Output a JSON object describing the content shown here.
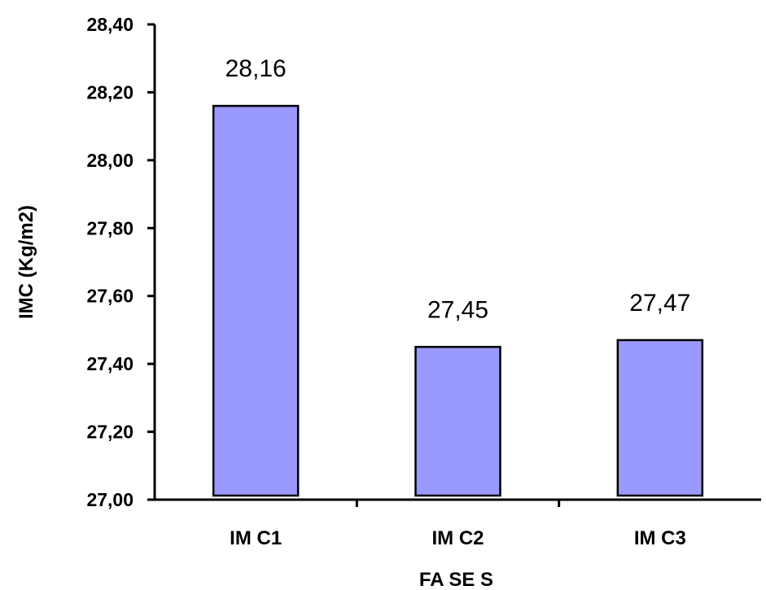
{
  "chart_data": {
    "type": "bar",
    "categories": [
      "IM C1",
      "IM C2",
      "IM C3"
    ],
    "values": [
      28.16,
      27.45,
      27.47
    ],
    "data_labels": [
      "28,16",
      "27,45",
      "27,47"
    ],
    "title": "",
    "xlabel": "FA SE S",
    "ylabel": "IMC (Kg/m2)",
    "ylim": [
      27.0,
      28.4
    ],
    "yticks": [
      27.0,
      27.2,
      27.4,
      27.6,
      27.8,
      28.0,
      28.2,
      28.4
    ],
    "ytick_labels": [
      "27,00",
      "27,20",
      "27,40",
      "27,60",
      "27,80",
      "28,00",
      "28,20",
      "28,40"
    ],
    "grid": false,
    "legend": "none",
    "colors": {
      "bar_fill": "#9999ff",
      "bar_stroke": "#000000",
      "axis": "#000000"
    }
  }
}
